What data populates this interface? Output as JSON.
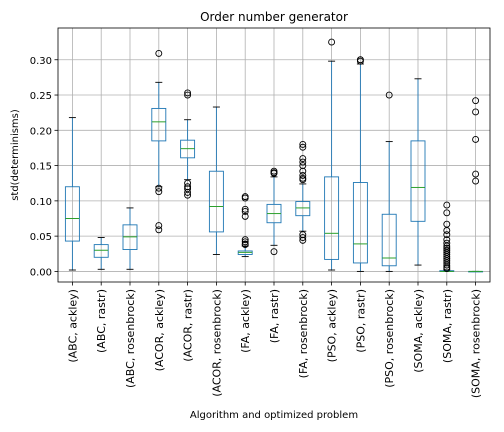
{
  "chart_data": {
    "type": "box",
    "title": "Order number generator",
    "xlabel": "Algorithm and optimized problem",
    "ylabel": "std(determinisms)",
    "ylim": [
      -0.015,
      0.345
    ],
    "yticks": [
      0.0,
      0.05,
      0.1,
      0.15,
      0.2,
      0.25,
      0.3
    ],
    "ytick_labels": [
      "0.00",
      "0.05",
      "0.10",
      "0.15",
      "0.20",
      "0.25",
      "0.30"
    ],
    "grid": true,
    "colors": {
      "box": "#1f77b4",
      "median": "#2ca02c",
      "grid": "#b0b0b0",
      "flier": "#000000"
    },
    "categories": [
      "(ABC, ackley)",
      "(ABC, rastr)",
      "(ABC, rosenbrock)",
      "(ACOR, ackley)",
      "(ACOR, rastr)",
      "(ACOR, rosenbrock)",
      "(FA, ackley)",
      "(FA, rastr)",
      "(FA, rosenbrock)",
      "(PSO, ackley)",
      "(PSO, rastr)",
      "(PSO, rosenbrock)",
      "(SOMA, ackley)",
      "(SOMA, rastr)",
      "(SOMA, rosenbrock)"
    ],
    "boxes": [
      {
        "whislo": 0.002,
        "q1": 0.043,
        "med": 0.075,
        "q3": 0.12,
        "whishi": 0.218,
        "fliers": []
      },
      {
        "whislo": 0.003,
        "q1": 0.02,
        "med": 0.03,
        "q3": 0.038,
        "whishi": 0.048,
        "fliers": []
      },
      {
        "whislo": 0.003,
        "q1": 0.031,
        "med": 0.049,
        "q3": 0.066,
        "whishi": 0.09,
        "fliers": []
      },
      {
        "whislo": 0.12,
        "q1": 0.185,
        "med": 0.212,
        "q3": 0.231,
        "whishi": 0.268,
        "fliers": [
          0.309,
          0.118,
          0.113,
          0.065,
          0.059
        ]
      },
      {
        "whislo": 0.13,
        "q1": 0.161,
        "med": 0.174,
        "q3": 0.186,
        "whishi": 0.215,
        "fliers": [
          0.253,
          0.25,
          0.125,
          0.12,
          0.117,
          0.112,
          0.108
        ]
      },
      {
        "whislo": 0.024,
        "q1": 0.056,
        "med": 0.092,
        "q3": 0.142,
        "whishi": 0.233,
        "fliers": []
      },
      {
        "whislo": 0.021,
        "q1": 0.024,
        "med": 0.027,
        "q3": 0.029,
        "whishi": 0.036,
        "fliers": [
          0.106,
          0.104,
          0.088,
          0.085,
          0.078,
          0.045,
          0.042,
          0.039,
          0.038
        ]
      },
      {
        "whislo": 0.037,
        "q1": 0.069,
        "med": 0.082,
        "q3": 0.095,
        "whishi": 0.134,
        "fliers": [
          0.142,
          0.14,
          0.139,
          0.028
        ]
      },
      {
        "whislo": 0.057,
        "q1": 0.079,
        "med": 0.09,
        "q3": 0.099,
        "whishi": 0.124,
        "fliers": [
          0.18,
          0.176,
          0.16,
          0.155,
          0.15,
          0.142,
          0.136,
          0.132,
          0.13,
          0.052,
          0.048,
          0.044
        ]
      },
      {
        "whislo": 0.002,
        "q1": 0.017,
        "med": 0.054,
        "q3": 0.134,
        "whishi": 0.298,
        "fliers": [
          0.325
        ]
      },
      {
        "whislo": 0.0,
        "q1": 0.012,
        "med": 0.039,
        "q3": 0.126,
        "whishi": 0.294,
        "fliers": [
          0.3,
          0.298
        ]
      },
      {
        "whislo": 0.0,
        "q1": 0.008,
        "med": 0.019,
        "q3": 0.081,
        "whishi": 0.184,
        "fliers": [
          0.25
        ]
      },
      {
        "whislo": 0.009,
        "q1": 0.071,
        "med": 0.119,
        "q3": 0.185,
        "whishi": 0.273,
        "fliers": []
      },
      {
        "whislo": 0.0,
        "q1": 0.0,
        "med": 0.0,
        "q3": 0.001,
        "whishi": 0.002,
        "fliers": [
          0.094,
          0.083,
          0.067,
          0.058,
          0.052,
          0.045,
          0.04,
          0.036,
          0.033,
          0.03,
          0.027,
          0.024,
          0.021,
          0.018,
          0.015,
          0.012,
          0.009,
          0.006,
          0.004
        ]
      },
      {
        "whislo": 0.0,
        "q1": 0.0,
        "med": 0.0,
        "q3": 0.0,
        "whishi": 0.0,
        "fliers": [
          0.242,
          0.226,
          0.187,
          0.138,
          0.128
        ]
      }
    ]
  }
}
